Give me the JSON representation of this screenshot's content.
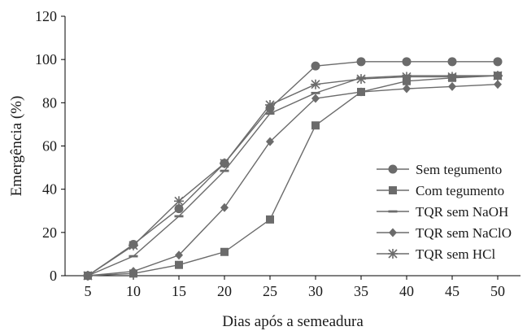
{
  "chart_data": {
    "type": "line",
    "title": "",
    "xlabel": "Dias após a semeadura",
    "ylabel": "Emergência (%)",
    "x": [
      5,
      10,
      15,
      20,
      25,
      30,
      35,
      40,
      45,
      50
    ],
    "xlim": [
      2.5,
      52.5
    ],
    "ylim": [
      0,
      120
    ],
    "yticks": [
      0,
      20,
      40,
      60,
      80,
      100,
      120
    ],
    "grid": false,
    "legend_position": "lower-right",
    "series": [
      {
        "name": "Sem tegumento",
        "marker": "circle",
        "color": "#6b6b6b",
        "values": [
          0,
          14.5,
          31,
          52,
          77.5,
          97,
          99,
          99,
          99,
          99
        ]
      },
      {
        "name": "Com tegumento",
        "marker": "square",
        "color": "#6b6b6b",
        "values": [
          0,
          1,
          5,
          11,
          26,
          69.5,
          85,
          90,
          91.5,
          92.5
        ]
      },
      {
        "name": "TQR sem NaOH",
        "marker": "dash",
        "color": "#6b6b6b",
        "values": [
          0,
          9,
          27.5,
          48.5,
          75,
          84.5,
          91.5,
          92.5,
          92.5,
          92.5
        ]
      },
      {
        "name": "TQR sem NaClO",
        "marker": "diamond",
        "color": "#6b6b6b",
        "values": [
          0,
          2,
          9.5,
          31.5,
          62,
          82,
          85,
          86.5,
          87.5,
          88.5
        ]
      },
      {
        "name": "TQR sem HCl",
        "marker": "asterisk",
        "color": "#6b6b6b",
        "values": [
          0,
          14,
          34.5,
          52,
          79,
          88.5,
          91,
          92,
          92,
          92.5
        ]
      }
    ]
  }
}
